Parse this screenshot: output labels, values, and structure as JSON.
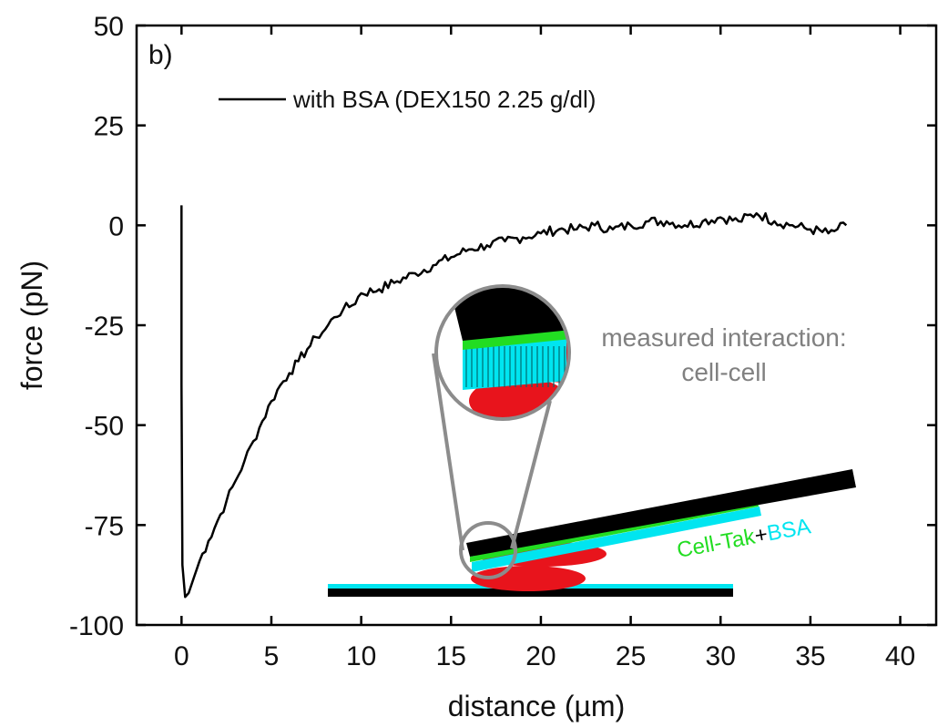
{
  "chart_data": {
    "type": "line",
    "panel_label": "b)",
    "xlabel": "distance (µm)",
    "ylabel": "force (pN)",
    "xlim": [
      -2.5,
      42
    ],
    "ylim": [
      -100,
      50
    ],
    "xticks": [
      0,
      5,
      10,
      15,
      20,
      25,
      30,
      35,
      40
    ],
    "yticks": [
      50,
      25,
      0,
      -25,
      -50,
      -75,
      -100
    ],
    "legend": {
      "position": "top-left",
      "entries": [
        "with BSA (DEX150 2.25 g/dl)"
      ]
    },
    "series": [
      {
        "name": "with BSA (DEX150 2.25 g/dl)",
        "color": "#000000",
        "x": [
          0.0,
          0.0,
          0.05,
          0.2,
          0.4,
          0.7,
          1.0,
          1.5,
          2.0,
          2.5,
          3.0,
          3.5,
          4.0,
          4.5,
          5.0,
          5.5,
          6.0,
          6.5,
          7.0,
          7.5,
          8.0,
          8.5,
          9.0,
          9.5,
          10.0,
          11.0,
          12.0,
          13.0,
          14.0,
          15.0,
          16.0,
          17.0,
          18.0,
          19.0,
          20.0,
          21.0,
          22.0,
          23.0,
          24.0,
          25.0,
          26.0,
          27.0,
          28.0,
          29.0,
          30.0,
          31.0,
          32.0,
          33.0,
          34.0,
          35.0,
          36.0,
          36.5,
          37.0
        ],
        "y": [
          5,
          -40,
          -85,
          -93,
          -92,
          -88,
          -84,
          -79,
          -74,
          -69,
          -64,
          -59,
          -54,
          -49,
          -44,
          -40,
          -37,
          -34,
          -31,
          -28,
          -26,
          -23,
          -21,
          -20,
          -17,
          -16,
          -14,
          -12,
          -10,
          -8,
          -6,
          -5,
          -4,
          -3,
          -2,
          -1,
          -1,
          0,
          -1,
          0,
          1,
          1,
          0,
          1,
          2,
          1,
          3,
          1,
          0,
          -1,
          -2,
          -1,
          0
        ]
      }
    ],
    "annotations": {
      "interaction": [
        "measured interaction:",
        "cell-cell"
      ],
      "coating_part1": "Cell-Tak",
      "coating_plus": "+",
      "coating_part2": "BSA"
    },
    "colors": {
      "cell": "#e8141c",
      "cell_tak": "#22dd22",
      "bsa": "#00e5f0",
      "cantilever": "#000000",
      "magnifier": "#8c8c8c"
    }
  }
}
